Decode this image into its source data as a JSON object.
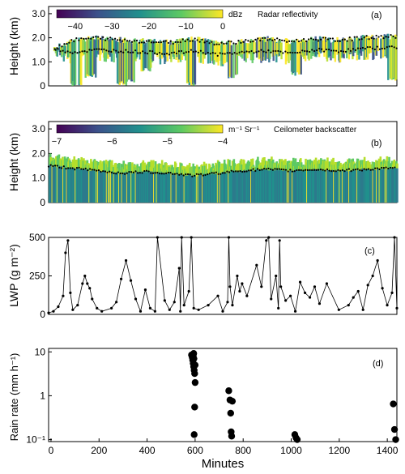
{
  "chart_data": [
    {
      "type": "heatmap",
      "panel_label": "(a)",
      "ylabel": "Height (km)",
      "yticks": [
        "0",
        "1.0",
        "2.0",
        "3.0"
      ],
      "ylim": [
        0,
        3.3
      ],
      "xlim": [
        0,
        1440
      ],
      "colorbar": {
        "label": "dBz",
        "ticks": [
          "-40",
          "-30",
          "-20",
          "-10",
          "0"
        ],
        "range": [
          -45,
          0
        ],
        "title": "Radar reflectivity"
      },
      "cloud_top_km": [
        [
          30,
          1.6
        ],
        [
          100,
          1.9
        ],
        [
          200,
          2.0
        ],
        [
          300,
          1.9
        ],
        [
          400,
          1.85
        ],
        [
          500,
          1.8
        ],
        [
          600,
          1.95
        ],
        [
          700,
          1.75
        ],
        [
          800,
          1.85
        ],
        [
          900,
          1.95
        ],
        [
          1000,
          1.85
        ],
        [
          1100,
          1.95
        ],
        [
          1200,
          1.9
        ],
        [
          1300,
          2.0
        ],
        [
          1400,
          2.05
        ]
      ],
      "cloud_base_km": [
        [
          30,
          1.5
        ],
        [
          100,
          1.4
        ],
        [
          200,
          1.5
        ],
        [
          300,
          1.45
        ],
        [
          400,
          1.4
        ],
        [
          500,
          1.35
        ],
        [
          600,
          1.45
        ],
        [
          700,
          1.3
        ],
        [
          800,
          1.4
        ],
        [
          900,
          1.45
        ],
        [
          1000,
          1.35
        ],
        [
          1100,
          1.5
        ],
        [
          1200,
          1.45
        ],
        [
          1300,
          1.55
        ],
        [
          1400,
          1.6
        ]
      ],
      "precip_shafts": [
        [
          110,
          0
        ],
        [
          170,
          0.3
        ],
        [
          300,
          0
        ],
        [
          330,
          0.1
        ],
        [
          400,
          0.6
        ],
        [
          590,
          0
        ],
        [
          760,
          0.3
        ],
        [
          1020,
          0.4
        ],
        [
          1420,
          0.2
        ]
      ]
    },
    {
      "type": "heatmap",
      "panel_label": "(b)",
      "ylabel": "Height (km)",
      "yticks": [
        "0",
        "1.0",
        "2.0",
        "3.0"
      ],
      "ylim": [
        0,
        3.3
      ],
      "xlim": [
        0,
        1440
      ],
      "colorbar": {
        "label": "m⁻¹ Sr⁻¹",
        "ticks": [
          "-7",
          "-6",
          "-5",
          "-4"
        ],
        "range": [
          -7,
          -4
        ],
        "title": "Ceilometer backscatter"
      },
      "cloud_base_km": [
        [
          0,
          1.5
        ],
        [
          100,
          1.4
        ],
        [
          200,
          1.3
        ],
        [
          300,
          1.2
        ],
        [
          400,
          1.25
        ],
        [
          500,
          1.2
        ],
        [
          600,
          1.1
        ],
        [
          700,
          1.2
        ],
        [
          800,
          1.3
        ],
        [
          900,
          1.35
        ],
        [
          1000,
          1.3
        ],
        [
          1100,
          1.35
        ],
        [
          1200,
          1.3
        ],
        [
          1300,
          1.35
        ],
        [
          1440,
          1.4
        ]
      ]
    },
    {
      "type": "line",
      "panel_label": "(c)",
      "ylabel": "LWP (g m⁻²)",
      "yticks": [
        "0",
        "250",
        "500"
      ],
      "ylim": [
        0,
        500
      ],
      "xlim": [
        0,
        1440
      ],
      "series": [
        {
          "x": [
            0,
            20,
            40,
            60,
            70,
            80,
            90,
            100,
            120,
            140,
            150,
            160,
            170,
            180,
            200,
            220,
            260,
            280,
            300,
            320,
            340,
            360,
            380,
            400,
            420,
            440,
            450,
            480,
            500,
            520,
            540,
            545,
            550,
            560,
            580,
            590,
            600,
            620,
            660,
            700,
            720,
            740,
            745,
            750,
            760,
            780,
            790,
            800,
            820,
            860,
            880,
            900,
            910,
            920,
            940,
            950,
            955,
            960,
            980,
            1000,
            1020,
            1040,
            1060,
            1080,
            1100,
            1120,
            1150,
            1200,
            1240,
            1260,
            1280,
            1300,
            1320,
            1340,
            1360,
            1380,
            1400,
            1420,
            1430,
            1440
          ],
          "y": [
            10,
            20,
            50,
            120,
            400,
            480,
            140,
            30,
            60,
            200,
            250,
            200,
            170,
            100,
            40,
            20,
            40,
            80,
            230,
            350,
            220,
            100,
            20,
            160,
            40,
            20,
            500,
            90,
            30,
            80,
            300,
            20,
            500,
            60,
            150,
            500,
            40,
            30,
            60,
            120,
            20,
            80,
            500,
            180,
            60,
            250,
            150,
            200,
            120,
            320,
            180,
            480,
            500,
            100,
            250,
            40,
            480,
            180,
            90,
            120,
            20,
            210,
            140,
            110,
            180,
            70,
            200,
            30,
            60,
            110,
            150,
            30,
            190,
            250,
            350,
            170,
            60,
            140,
            500,
            40
          ]
        }
      ]
    },
    {
      "type": "scatter",
      "panel_label": "(d)",
      "ylabel": "Rain rate (mm h⁻¹)",
      "xlabel": "Minutes",
      "yscale": "log",
      "yticks": [
        "10",
        "1",
        "10⁻¹"
      ],
      "ylim": [
        0.09,
        12
      ],
      "xlim": [
        -10,
        1440
      ],
      "xticks": [
        "0",
        "200",
        "400",
        "600",
        "800",
        "1000",
        "1200",
        "1400"
      ],
      "x": [
        585,
        588,
        590,
        592,
        594,
        596,
        598,
        600,
        598,
        596,
        594,
        592,
        595,
        600,
        740,
        745,
        748,
        750,
        752,
        755,
        1015,
        1020,
        1025,
        1425,
        1430,
        1435
      ],
      "y": [
        8.5,
        7.5,
        6.5,
        5.5,
        4.6,
        3.8,
        3.2,
        2.0,
        0.55,
        0.13,
        9.2,
        8.0,
        7.0,
        5.0,
        1.3,
        0.8,
        0.4,
        0.15,
        0.12,
        0.75,
        0.13,
        0.11,
        0.1,
        0.65,
        0.17,
        0.1
      ]
    }
  ]
}
